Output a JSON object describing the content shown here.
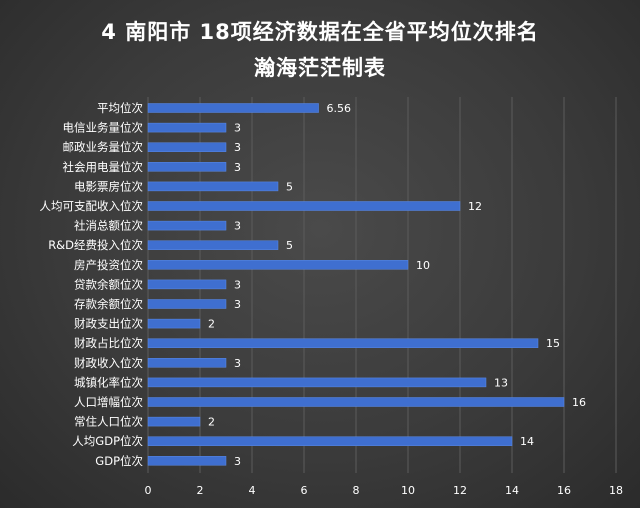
{
  "chart_data": {
    "type": "bar",
    "orientation": "horizontal",
    "title": "4 南阳市 18项经济数据在全省平均位次排名",
    "subtitle": "瀚海茫茫制表",
    "categories": [
      "平均位次",
      "电信业务量位次",
      "邮政业务量位次",
      "社会用电量位次",
      "电影票房位次",
      "人均可支配收入位次",
      "社消总额位次",
      "R&D经费投入位次",
      "房产投资位次",
      "贷款余额位次",
      "存款余额位次",
      "财政支出位次",
      "财政占比位次",
      "财政收入位次",
      "城镇化率位次",
      "人口增幅位次",
      "常住人口位次",
      "人均GDP位次",
      "GDP位次"
    ],
    "values": [
      6.56,
      3,
      3,
      3,
      5,
      12,
      3,
      5,
      10,
      3,
      3,
      2,
      15,
      3,
      13,
      16,
      2,
      14,
      3
    ],
    "value_labels": [
      "6.56",
      "3",
      "3",
      "3",
      "5",
      "12",
      "3",
      "5",
      "10",
      "3",
      "3",
      "2",
      "15",
      "3",
      "13",
      "16",
      "2",
      "14",
      "3"
    ],
    "xlim": [
      0,
      18
    ],
    "xticks": [
      0,
      2,
      4,
      6,
      8,
      10,
      12,
      14,
      16,
      18
    ],
    "xtick_labels": [
      "0",
      "2",
      "4",
      "6",
      "8",
      "10",
      "12",
      "14",
      "16",
      "18"
    ],
    "grid": true,
    "colors": {
      "bar": "#3f6fd0",
      "background": "#3b3b3b",
      "text": "#ffffff",
      "grid": "#5c5c5c"
    }
  }
}
